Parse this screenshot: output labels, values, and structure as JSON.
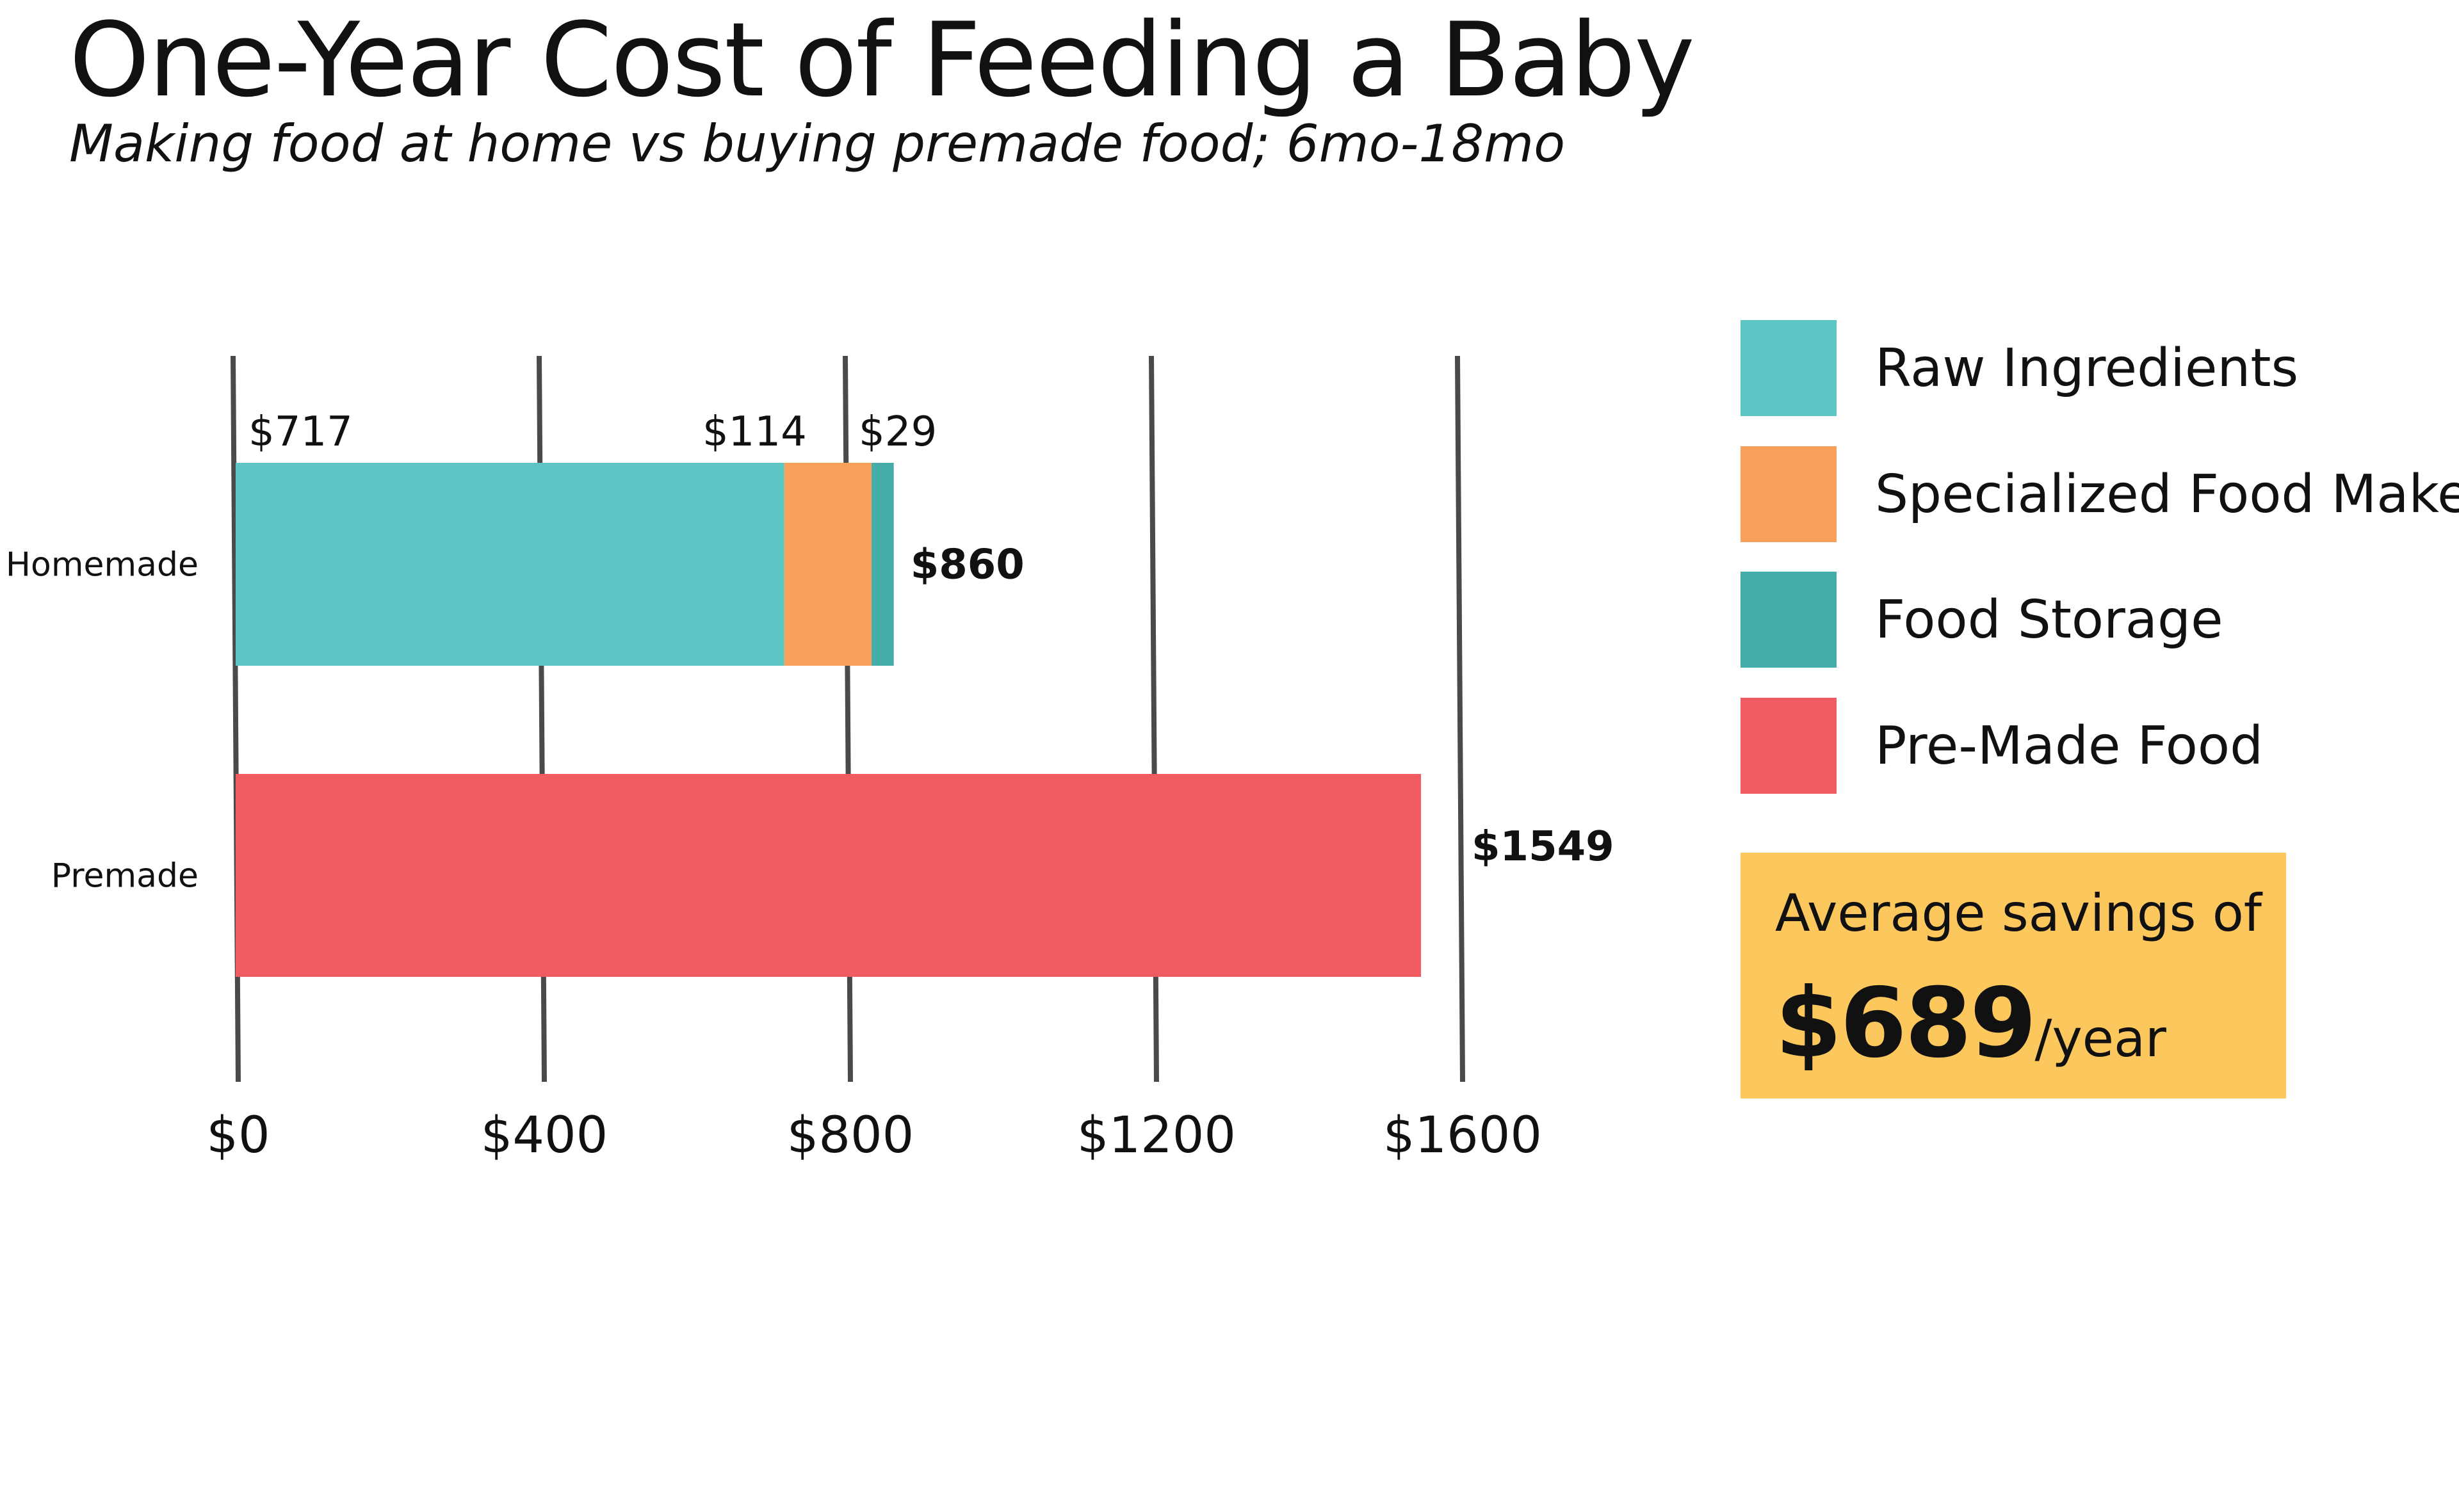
{
  "title": "One-Year Cost of Feeding a Baby",
  "subtitle": "Making food at home vs buying premade food; 6mo-18mo",
  "colors": {
    "raw_ingredients": "#5EC5C5",
    "food_maker": "#F9A05D",
    "food_storage": "#45ACA9",
    "premade": "#F15B62",
    "savings_bg": "#FCC75C",
    "gridline": "#4a4a4a"
  },
  "chart_data": {
    "type": "bar",
    "orientation": "horizontal",
    "stacked": true,
    "categories": [
      "Homemade",
      "Premade"
    ],
    "series": [
      {
        "name": "Raw Ingredients",
        "values": [
          717,
          0
        ],
        "color_key": "raw_ingredients"
      },
      {
        "name": "Specialized Food Maker",
        "values": [
          114,
          0
        ],
        "color_key": "food_maker"
      },
      {
        "name": "Food Storage",
        "values": [
          29,
          0
        ],
        "color_key": "food_storage"
      },
      {
        "name": "Pre-Made Food",
        "values": [
          0,
          1549
        ],
        "color_key": "premade"
      }
    ],
    "segment_labels": [
      "$717",
      "$114",
      "$29"
    ],
    "totals": [
      {
        "category": "Homemade",
        "value": 860,
        "label": "$860"
      },
      {
        "category": "Premade",
        "value": 1549,
        "label": "$1549"
      }
    ],
    "x_ticks": [
      0,
      400,
      800,
      1200,
      1600
    ],
    "x_tick_labels": [
      "$0",
      "$400",
      "$800",
      "$1200",
      "$1600"
    ],
    "xlim": [
      0,
      1600
    ],
    "grid": true,
    "legend_position": "right"
  },
  "legend": [
    {
      "label": "Raw Ingredients",
      "color_key": "raw_ingredients"
    },
    {
      "label": "Specialized Food Maker",
      "color_key": "food_maker"
    },
    {
      "label": "Food Storage",
      "color_key": "food_storage"
    },
    {
      "label": "Pre-Made Food",
      "color_key": "premade"
    }
  ],
  "savings": {
    "text": "Average savings of",
    "amount": "$689",
    "unit": "/year"
  }
}
